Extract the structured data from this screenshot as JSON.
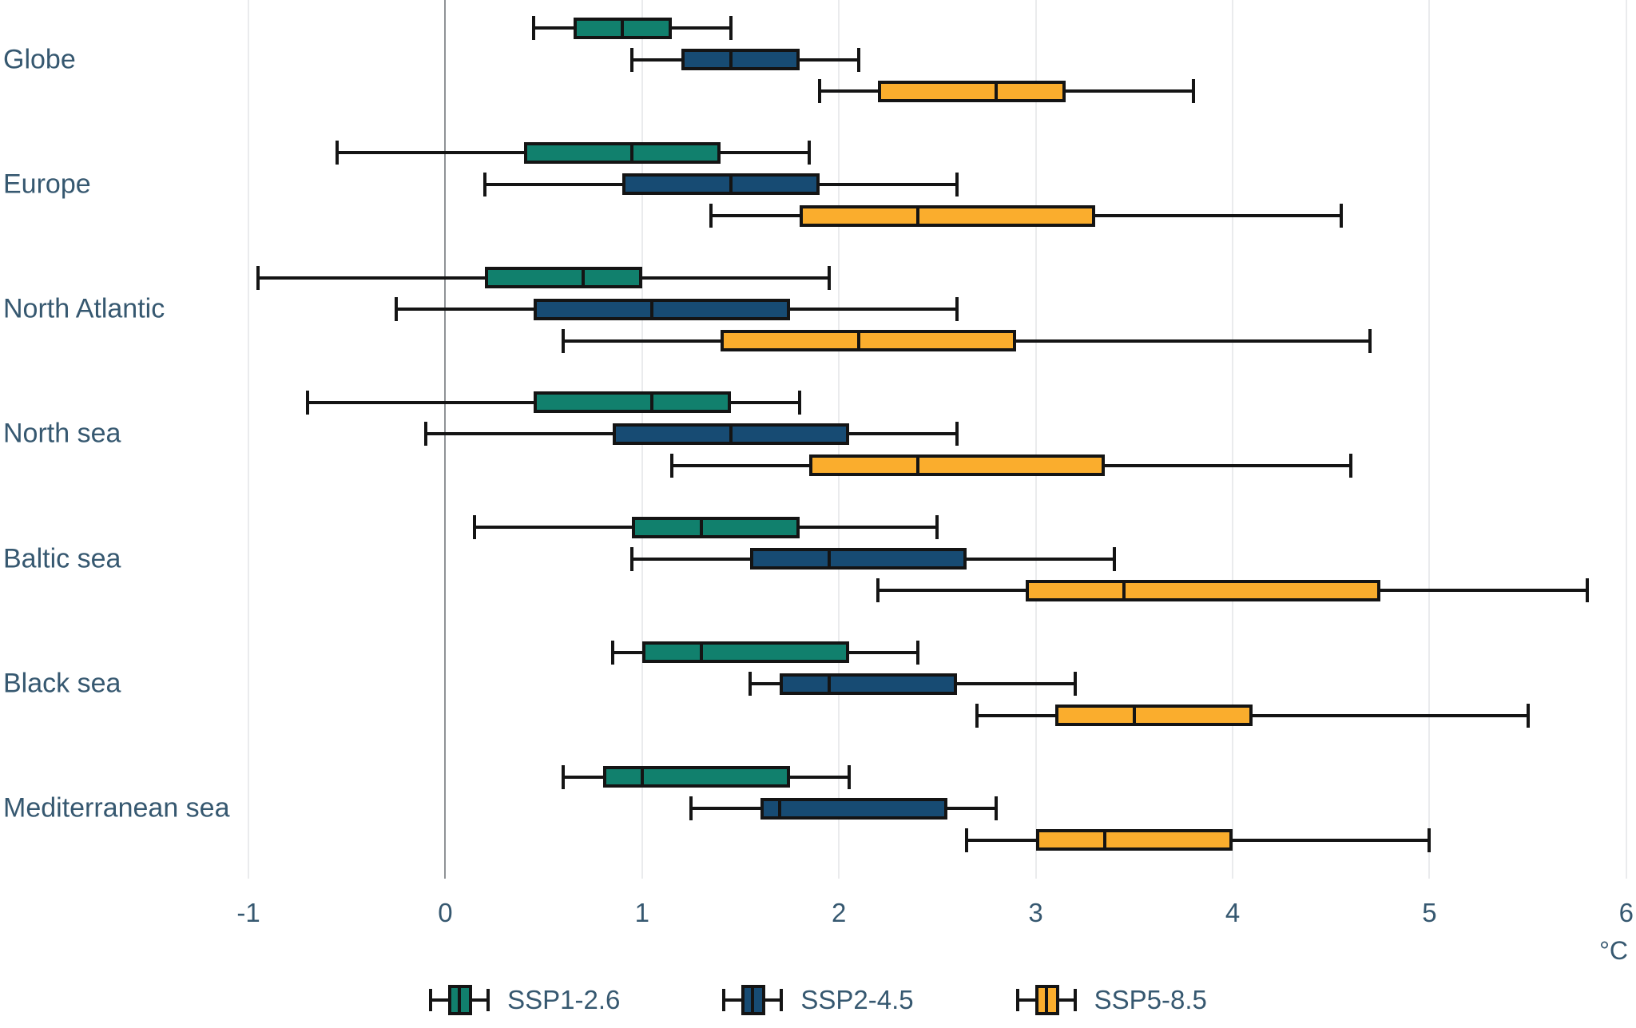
{
  "chart_data": {
    "type": "boxplot",
    "orientation": "horizontal",
    "value_keys": [
      "min",
      "q1",
      "median",
      "q3",
      "max"
    ],
    "categories": [
      "Globe",
      "Europe",
      "North Atlantic",
      "North sea",
      "Baltic sea",
      "Black sea",
      "Mediterranean sea"
    ],
    "series": [
      {
        "name": "SSP1-2.6",
        "color": "#11806D",
        "values": [
          [
            0.45,
            0.65,
            0.9,
            1.15,
            1.45
          ],
          [
            -0.55,
            0.4,
            0.95,
            1.4,
            1.85
          ],
          [
            -0.95,
            0.2,
            0.7,
            1.0,
            1.95
          ],
          [
            -0.7,
            0.45,
            1.05,
            1.45,
            1.8
          ],
          [
            0.15,
            0.95,
            1.3,
            1.8,
            2.5
          ],
          [
            0.85,
            1.0,
            1.3,
            2.05,
            2.4
          ],
          [
            0.6,
            0.8,
            1.0,
            1.75,
            2.05
          ]
        ]
      },
      {
        "name": "SSP2-4.5",
        "color": "#174B73",
        "values": [
          [
            0.95,
            1.2,
            1.45,
            1.8,
            2.1
          ],
          [
            0.2,
            0.9,
            1.45,
            1.9,
            2.6
          ],
          [
            -0.25,
            0.45,
            1.05,
            1.75,
            2.6
          ],
          [
            -0.1,
            0.85,
            1.45,
            2.05,
            2.6
          ],
          [
            0.95,
            1.55,
            1.95,
            2.65,
            3.4
          ],
          [
            1.55,
            1.7,
            1.95,
            2.6,
            3.2
          ],
          [
            1.25,
            1.6,
            1.7,
            2.55,
            2.8
          ]
        ]
      },
      {
        "name": "SSP5-8.5",
        "color": "#FAAD2D",
        "values": [
          [
            1.9,
            2.2,
            2.8,
            3.15,
            3.8
          ],
          [
            1.35,
            1.8,
            2.4,
            3.3,
            4.55
          ],
          [
            0.6,
            1.4,
            2.1,
            2.9,
            4.7
          ],
          [
            1.15,
            1.85,
            2.4,
            3.35,
            4.6
          ],
          [
            2.2,
            2.95,
            3.45,
            4.75,
            5.8
          ],
          [
            2.7,
            3.1,
            3.5,
            4.1,
            5.5
          ],
          [
            2.65,
            3.0,
            3.35,
            4.0,
            5.0
          ]
        ]
      }
    ],
    "x_axis": {
      "min": -1,
      "max": 6,
      "ticks": [
        -1,
        0,
        1,
        2,
        3,
        4,
        5,
        6
      ],
      "unit": "°C",
      "grid": true,
      "zero_line": true
    },
    "legend_position": "bottom"
  },
  "colors": {
    "text": "#365870",
    "grid_light": "#EAEBED",
    "grid_zero": "#8F9296",
    "box_border": "#141414",
    "background": "#FFFFFF"
  }
}
